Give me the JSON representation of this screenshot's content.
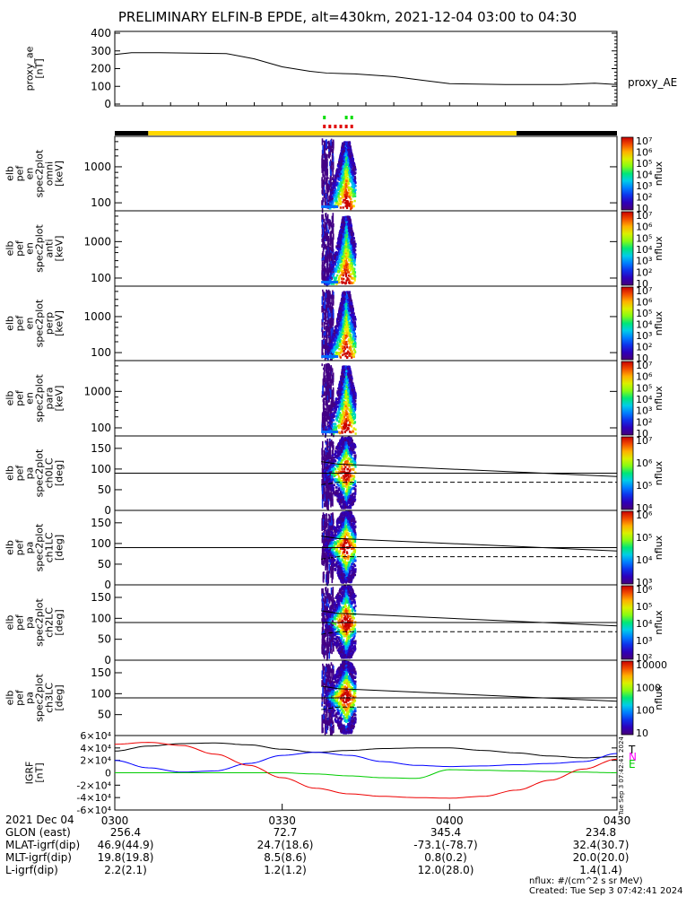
{
  "title": "PRELIMINARY ELFIN-B EPDE, alt=430km, 2021-12-04 03:00 to 04:30",
  "time_axis": {
    "start": "03:00",
    "end": "04:30",
    "ticks": [
      "0300",
      "0330",
      "0400",
      "0430"
    ]
  },
  "footer_table": {
    "header_label": "2021 Dec 04",
    "rows": [
      {
        "label": "GLON (east)",
        "values": [
          "256.4",
          "72.7",
          "345.4",
          "234.8"
        ]
      },
      {
        "label": "MLAT-igrf(dip)",
        "values": [
          "46.9(44.9)",
          "24.7(18.6)",
          "-73.1(-78.7)",
          "32.4(30.7)"
        ]
      },
      {
        "label": "MLT-igrf(dip)",
        "values": [
          "19.8(19.8)",
          "8.5(8.6)",
          "0.8(0.2)",
          "20.0(20.0)"
        ]
      },
      {
        "label": "L-igrf(dip)",
        "values": [
          "2.2(2.1)",
          "1.2(1.2)",
          "12.0(28.0)",
          "1.4(1.4)"
        ]
      }
    ]
  },
  "footnote": {
    "units": "nflux: #/(cm^2 s sr MeV)",
    "created": "Created: Tue Sep  3 07:42:41 2024",
    "side_stamp": "Tue Sep  3 07:42:41 2024"
  },
  "colors": {
    "sunlight": "#ffd700",
    "eclipse": "#000000",
    "green_marks": "#00dd00",
    "red_marks": "#e00000"
  },
  "chart_data": [
    {
      "id": "proxy_ae",
      "type": "line",
      "ylabel": [
        "proxy_ae",
        "[nT]"
      ],
      "ylim": [
        0,
        400
      ],
      "yticks": [
        "0",
        "100",
        "200",
        "300",
        "400"
      ],
      "legend": "proxy_AE",
      "legend_position": "right",
      "x": [
        "03:00",
        "03:03",
        "03:08",
        "03:20",
        "03:25",
        "03:30",
        "03:35",
        "03:38",
        "03:43",
        "03:50",
        "03:55",
        "04:00",
        "04:10",
        "04:20",
        "04:26",
        "04:30"
      ],
      "values": [
        280,
        290,
        290,
        285,
        255,
        210,
        185,
        175,
        170,
        155,
        135,
        115,
        110,
        110,
        118,
        110
      ]
    },
    {
      "id": "omni_en",
      "type": "heatmap",
      "ylabel": [
        "elb",
        "pef",
        "en",
        "spec2plot",
        "omni",
        "[keV]"
      ],
      "yscale": "log",
      "ylim": [
        60,
        7000
      ],
      "yticks": [
        "100",
        "1000"
      ],
      "colorbar": {
        "label": "nflux",
        "scale": "log",
        "range": [
          10,
          10000000
        ],
        "ticks": [
          "10",
          "10²",
          "10³",
          "10⁴",
          "10⁵",
          "10⁶",
          "10⁷"
        ]
      },
      "data_window": [
        "03:37",
        "03:43"
      ],
      "peak_time": "03:41",
      "peak_energy_keV": 100
    },
    {
      "id": "anti_en",
      "type": "heatmap",
      "ylabel": [
        "elb",
        "pef",
        "en",
        "spec2plot",
        "anti",
        "[keV]"
      ],
      "yscale": "log",
      "ylim": [
        60,
        7000
      ],
      "yticks": [
        "100",
        "1000"
      ],
      "colorbar": {
        "label": "nflux",
        "scale": "log",
        "range": [
          10,
          10000000
        ],
        "ticks": [
          "10",
          "10²",
          "10³",
          "10⁴",
          "10⁵",
          "10⁶",
          "10⁷"
        ]
      },
      "data_window": [
        "03:37",
        "03:43"
      ],
      "peak_time": "03:41",
      "peak_energy_keV": 100
    },
    {
      "id": "perp_en",
      "type": "heatmap",
      "ylabel": [
        "elb",
        "pef",
        "en",
        "spec2plot",
        "perp",
        "[keV]"
      ],
      "yscale": "log",
      "ylim": [
        60,
        7000
      ],
      "yticks": [
        "100",
        "1000"
      ],
      "colorbar": {
        "label": "nflux",
        "scale": "log",
        "range": [
          10,
          10000000
        ],
        "ticks": [
          "10",
          "10²",
          "10³",
          "10⁴",
          "10⁵",
          "10⁶",
          "10⁷"
        ]
      },
      "data_window": [
        "03:37",
        "03:43"
      ],
      "peak_time": "03:41",
      "peak_energy_keV": 100
    },
    {
      "id": "para_en",
      "type": "heatmap",
      "ylabel": [
        "elb",
        "pef",
        "en",
        "spec2plot",
        "para",
        "[keV]"
      ],
      "yscale": "log",
      "ylim": [
        60,
        7000
      ],
      "yticks": [
        "100",
        "1000"
      ],
      "colorbar": {
        "label": "nflux",
        "scale": "log",
        "range": [
          10,
          10000000
        ],
        "ticks": [
          "10",
          "10²",
          "10³",
          "10⁴",
          "10⁵",
          "10⁶",
          "10⁷"
        ]
      },
      "data_window": [
        "03:37",
        "03:43"
      ],
      "peak_time": "03:41",
      "peak_energy_keV": 100
    },
    {
      "id": "ch0LC",
      "type": "heatmap",
      "ylabel": [
        "elb",
        "pef",
        "pa",
        "spec2plot",
        "ch0LC",
        "[deg]"
      ],
      "ylim": [
        0,
        180
      ],
      "yticks": [
        "0",
        "50",
        "100",
        "150"
      ],
      "ref_line": 90,
      "colorbar": {
        "label": "nflux",
        "scale": "log",
        "range": [
          1000,
          10000000
        ],
        "ticks": [
          "10⁴",
          "10⁵",
          "10⁶",
          "10⁷"
        ]
      },
      "data_window": [
        "03:37",
        "03:43"
      ],
      "peak_time": "03:41",
      "peak_deg": 90,
      "loss_cone": {
        "x": [
          "03:37",
          "03:40",
          "04:30"
        ],
        "values": [
          118,
          112,
          82
        ]
      },
      "anti_loss_cone": {
        "x": [
          "03:37",
          "03:40",
          "04:30"
        ],
        "values": [
          62,
          68,
          68
        ]
      }
    },
    {
      "id": "ch1LC",
      "type": "heatmap",
      "ylabel": [
        "elb",
        "pef",
        "pa",
        "spec2plot",
        "ch1LC",
        "[deg]"
      ],
      "ylim": [
        0,
        180
      ],
      "yticks": [
        "0",
        "50",
        "100",
        "150"
      ],
      "ref_line": 90,
      "colorbar": {
        "label": "nflux",
        "scale": "log",
        "range": [
          100,
          3000000
        ],
        "ticks": [
          "10³",
          "10⁴",
          "10⁵",
          "10⁶"
        ]
      },
      "data_window": [
        "03:37",
        "03:43"
      ],
      "peak_time": "03:41",
      "peak_deg": 90,
      "loss_cone": {
        "x": [
          "03:37",
          "03:40",
          "04:30"
        ],
        "values": [
          118,
          112,
          82
        ]
      },
      "anti_loss_cone": {
        "x": [
          "03:37",
          "03:40",
          "04:30"
        ],
        "values": [
          62,
          68,
          68
        ]
      }
    },
    {
      "id": "ch2LC",
      "type": "heatmap",
      "ylabel": [
        "elb",
        "pef",
        "pa",
        "spec2plot",
        "ch2LC",
        "[deg]"
      ],
      "ylim": [
        0,
        180
      ],
      "yticks": [
        "0",
        "50",
        "100",
        "150"
      ],
      "ref_line": 90,
      "colorbar": {
        "label": "nflux",
        "scale": "log",
        "range": [
          100,
          1000000
        ],
        "ticks": [
          "10²",
          "10³",
          "10⁴",
          "10⁵",
          "10⁶"
        ]
      },
      "data_window": [
        "03:37",
        "03:43"
      ],
      "peak_time": "03:41",
      "peak_deg": 90,
      "loss_cone": {
        "x": [
          "03:37",
          "03:40",
          "04:30"
        ],
        "values": [
          118,
          112,
          82
        ]
      },
      "anti_loss_cone": {
        "x": [
          "03:37",
          "03:40",
          "04:30"
        ],
        "values": [
          62,
          68,
          68
        ]
      }
    },
    {
      "id": "ch3LC",
      "type": "heatmap",
      "ylabel": [
        "elb",
        "pef",
        "pa",
        "spec2plot",
        "ch3LC",
        "[deg]"
      ],
      "ylim": [
        0,
        180
      ],
      "yticks": [
        "50",
        "100",
        "150"
      ],
      "ref_line": 90,
      "colorbar": {
        "label": "nflux",
        "scale": "log",
        "range": [
          10,
          10000
        ],
        "ticks": [
          "10",
          "100",
          "1000",
          "10000"
        ]
      },
      "data_window": [
        "03:37",
        "03:43"
      ],
      "peak_time": "03:41",
      "peak_deg": 90,
      "loss_cone": {
        "x": [
          "03:37",
          "03:40",
          "04:30"
        ],
        "values": [
          118,
          112,
          82
        ]
      },
      "anti_loss_cone": {
        "x": [
          "03:37",
          "03:40",
          "04:30"
        ],
        "values": [
          62,
          68,
          68
        ]
      }
    },
    {
      "id": "igrf",
      "type": "line",
      "ylabel": [
        "IGRF",
        "[nT]"
      ],
      "ylim": [
        -60000,
        60000
      ],
      "yticks": [
        "-6×10⁴",
        "-4×10⁴",
        "-2×10⁴",
        "0",
        "2×10⁴",
        "4×10⁴",
        "6×10⁴"
      ],
      "legend": [
        "T",
        "N",
        "E"
      ],
      "legend_position": "right",
      "x": [
        "03:00",
        "03:06",
        "03:12",
        "03:18",
        "03:24",
        "03:30",
        "03:36",
        "03:42",
        "03:48",
        "03:54",
        "04:00",
        "04:06",
        "04:12",
        "04:18",
        "04:24",
        "04:30"
      ],
      "series": [
        {
          "name": "T",
          "color": "#000000",
          "values": [
            35000,
            43000,
            47000,
            48000,
            45000,
            38000,
            33000,
            36000,
            39000,
            40000,
            40000,
            36000,
            32000,
            27000,
            24000,
            26000
          ]
        },
        {
          "name": "N",
          "color": "#0000ff",
          "values": [
            20000,
            8000,
            1000,
            3000,
            15000,
            28000,
            33000,
            28000,
            18000,
            12000,
            10000,
            11000,
            13000,
            15000,
            18000,
            31000
          ]
        },
        {
          "name": "E",
          "color": "#00cc00",
          "values": [
            0,
            0,
            0,
            0,
            0,
            0,
            -2000,
            -5000,
            -8000,
            -9000,
            5000,
            4000,
            3000,
            2000,
            1000,
            0
          ]
        },
        {
          "name": "",
          "color": "#ee0000",
          "values": [
            46000,
            49000,
            44000,
            30000,
            12000,
            -8000,
            -25000,
            -34000,
            -38000,
            -40000,
            -41000,
            -38000,
            -28000,
            -12000,
            6000,
            22000
          ]
        }
      ]
    }
  ]
}
